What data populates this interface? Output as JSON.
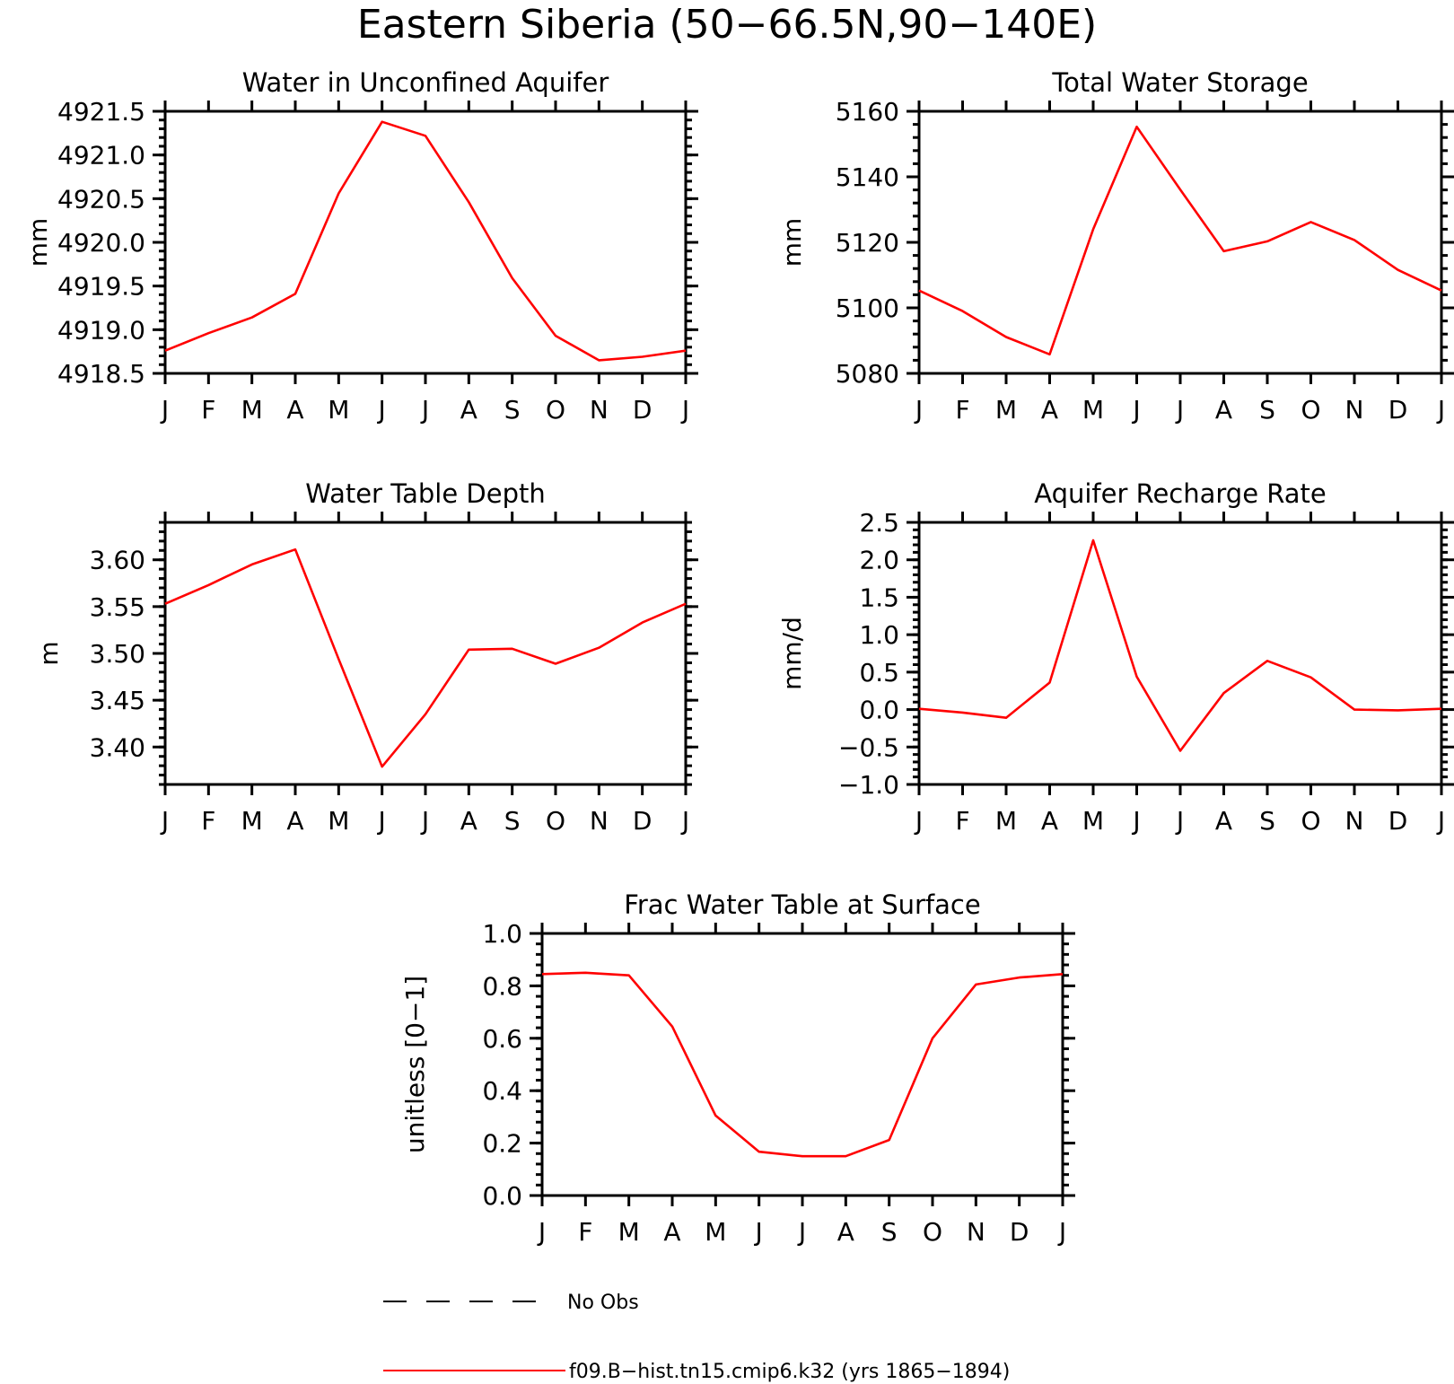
{
  "figure_title": "Eastern Siberia (50−66.5N,90−140E)",
  "legend": {
    "items": [
      {
        "label": "No Obs",
        "color": "#000000",
        "style": "dashed"
      },
      {
        "label": "f09.B−hist.tn15.cmip6.k32 (yrs 1865−1894)",
        "color": "#ff0000",
        "style": "solid"
      }
    ]
  },
  "chart_data": [
    {
      "type": "line",
      "title": "Water in Unconfined Aquifer",
      "xlabel": "",
      "ylabel": "mm",
      "categories": [
        "J",
        "F",
        "M",
        "A",
        "M",
        "J",
        "J",
        "A",
        "S",
        "O",
        "N",
        "D",
        "J"
      ],
      "ylim": [
        4918.5,
        4921.5
      ],
      "yticks": [
        4918.5,
        4919.0,
        4919.5,
        4920.0,
        4920.5,
        4921.0,
        4921.5
      ],
      "ytick_labels": [
        "4918.5",
        "4919.0",
        "4919.5",
        "4920.0",
        "4920.5",
        "4921.0",
        "4921.5"
      ],
      "series": [
        {
          "color": "#ff0000",
          "values": [
            4918.76,
            4918.96,
            4919.14,
            4919.41,
            4920.56,
            4921.38,
            4921.22,
            4920.46,
            4919.59,
            4918.93,
            4918.65,
            4918.69,
            4918.76
          ]
        }
      ]
    },
    {
      "type": "line",
      "title": "Total Water Storage",
      "xlabel": "",
      "ylabel": "mm",
      "categories": [
        "J",
        "F",
        "M",
        "A",
        "M",
        "J",
        "J",
        "A",
        "S",
        "O",
        "N",
        "D",
        "J"
      ],
      "ylim": [
        5080,
        5160
      ],
      "yticks": [
        5080,
        5100,
        5120,
        5140,
        5160
      ],
      "ytick_labels": [
        "5080",
        "5100",
        "5120",
        "5140",
        "5160"
      ],
      "series": [
        {
          "color": "#ff0000",
          "values": [
            5105.3,
            5099.0,
            5091.1,
            5085.8,
            5124.0,
            5155.3,
            5136.1,
            5117.3,
            5120.3,
            5126.2,
            5120.7,
            5111.6,
            5105.3
          ]
        }
      ]
    },
    {
      "type": "line",
      "title": "Water Table Depth",
      "xlabel": "",
      "ylabel": "m",
      "categories": [
        "J",
        "F",
        "M",
        "A",
        "M",
        "J",
        "J",
        "A",
        "S",
        "O",
        "N",
        "D",
        "J"
      ],
      "ylim": [
        3.36,
        3.64
      ],
      "yticks": [
        3.4,
        3.45,
        3.5,
        3.55,
        3.6
      ],
      "ytick_labels": [
        "3.40",
        "3.45",
        "3.50",
        "3.55",
        "3.60"
      ],
      "series": [
        {
          "color": "#ff0000",
          "values": [
            3.553,
            3.573,
            3.595,
            3.611,
            3.494,
            3.379,
            3.435,
            3.504,
            3.505,
            3.489,
            3.506,
            3.533,
            3.553
          ]
        }
      ]
    },
    {
      "type": "line",
      "title": "Aquifer Recharge Rate",
      "xlabel": "",
      "ylabel": "mm/d",
      "categories": [
        "J",
        "F",
        "M",
        "A",
        "M",
        "J",
        "J",
        "A",
        "S",
        "O",
        "N",
        "D",
        "J"
      ],
      "ylim": [
        -1.0,
        2.5
      ],
      "yticks": [
        -1.0,
        -0.5,
        0.0,
        0.5,
        1.0,
        1.5,
        2.0,
        2.5
      ],
      "ytick_labels": [
        "−1.0",
        "−0.5",
        "0.0",
        "0.5",
        "1.0",
        "1.5",
        "2.0",
        "2.5"
      ],
      "series": [
        {
          "color": "#ff0000",
          "values": [
            0.01,
            -0.04,
            -0.11,
            0.36,
            2.26,
            0.44,
            -0.55,
            0.22,
            0.65,
            0.43,
            0.0,
            -0.01,
            0.01
          ]
        }
      ]
    },
    {
      "type": "line",
      "title": "Frac Water Table at Surface",
      "xlabel": "",
      "ylabel": "unitless [0−1]",
      "categories": [
        "J",
        "F",
        "M",
        "A",
        "M",
        "J",
        "J",
        "A",
        "S",
        "O",
        "N",
        "D",
        "J"
      ],
      "ylim": [
        0.0,
        1.0
      ],
      "yticks": [
        0.0,
        0.2,
        0.4,
        0.6,
        0.8,
        1.0
      ],
      "ytick_labels": [
        "0.0",
        "0.2",
        "0.4",
        "0.6",
        "0.8",
        "1.0"
      ],
      "series": [
        {
          "color": "#ff0000",
          "values": [
            0.845,
            0.85,
            0.84,
            0.645,
            0.305,
            0.167,
            0.15,
            0.15,
            0.212,
            0.6,
            0.805,
            0.832,
            0.845
          ]
        }
      ]
    }
  ]
}
